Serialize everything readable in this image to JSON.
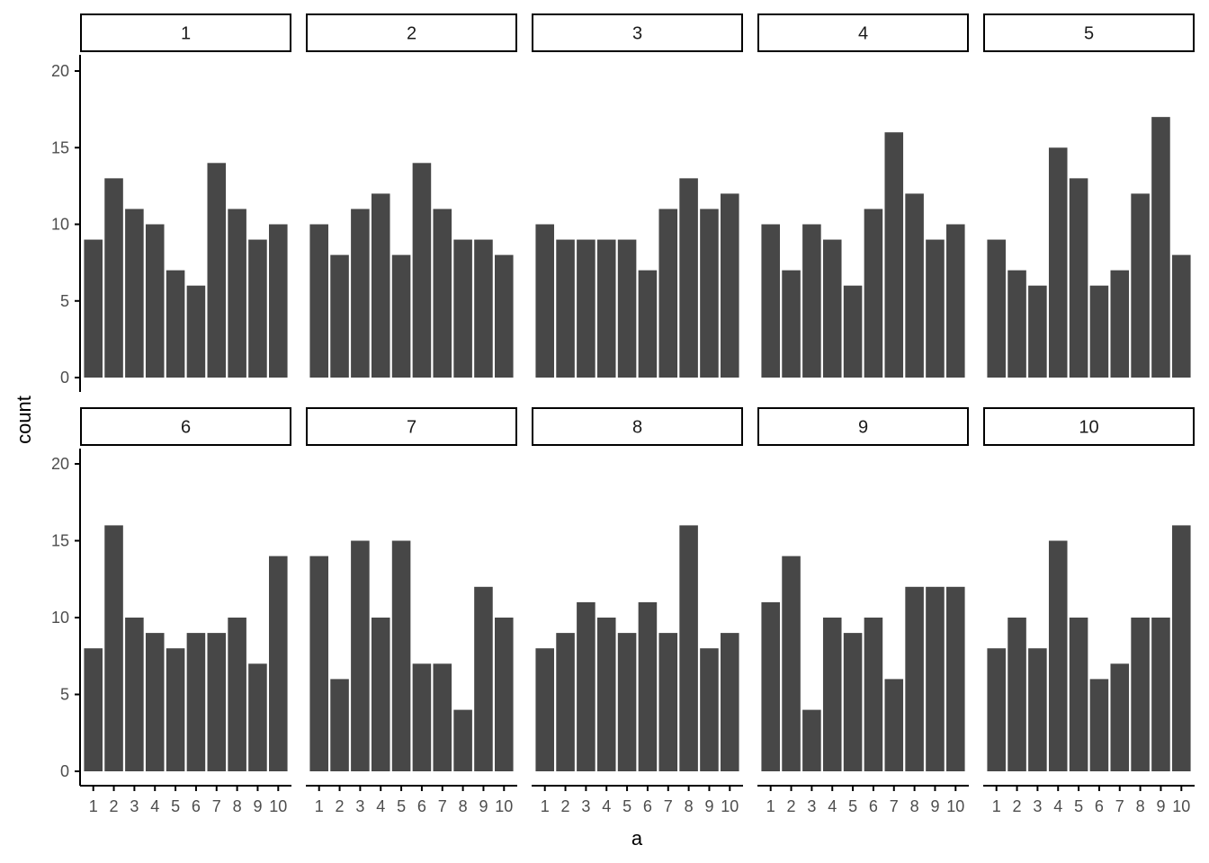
{
  "chart_data": {
    "type": "bar",
    "layout": "faceted",
    "categories": [
      "1",
      "2",
      "3",
      "4",
      "5",
      "6",
      "7",
      "8",
      "9",
      "10"
    ],
    "ylim": [
      0,
      20
    ],
    "yticks": [
      0,
      5,
      10,
      15,
      20
    ],
    "xlabel": "a",
    "ylabel": "count",
    "grid": false,
    "bar_color": "#474747",
    "facets": [
      {
        "label": "1",
        "values": [
          9,
          13,
          11,
          10,
          7,
          6,
          14,
          11,
          9,
          10
        ]
      },
      {
        "label": "2",
        "values": [
          10,
          8,
          11,
          12,
          8,
          14,
          11,
          9,
          9,
          8
        ]
      },
      {
        "label": "3",
        "values": [
          10,
          9,
          9,
          9,
          9,
          7,
          11,
          13,
          11,
          12
        ]
      },
      {
        "label": "4",
        "values": [
          10,
          7,
          10,
          9,
          6,
          11,
          16,
          12,
          9,
          10
        ]
      },
      {
        "label": "5",
        "values": [
          9,
          7,
          6,
          15,
          13,
          6,
          7,
          12,
          17,
          8
        ]
      },
      {
        "label": "6",
        "values": [
          8,
          16,
          10,
          9,
          8,
          9,
          9,
          10,
          7,
          14
        ]
      },
      {
        "label": "7",
        "values": [
          14,
          6,
          15,
          10,
          15,
          7,
          7,
          4,
          12,
          10
        ]
      },
      {
        "label": "8",
        "values": [
          8,
          9,
          11,
          10,
          9,
          11,
          9,
          16,
          8,
          9
        ]
      },
      {
        "label": "9",
        "values": [
          11,
          14,
          4,
          10,
          9,
          10,
          6,
          12,
          12,
          12
        ]
      },
      {
        "label": "10",
        "values": [
          8,
          10,
          8,
          15,
          10,
          6,
          7,
          10,
          10,
          16
        ]
      }
    ]
  }
}
